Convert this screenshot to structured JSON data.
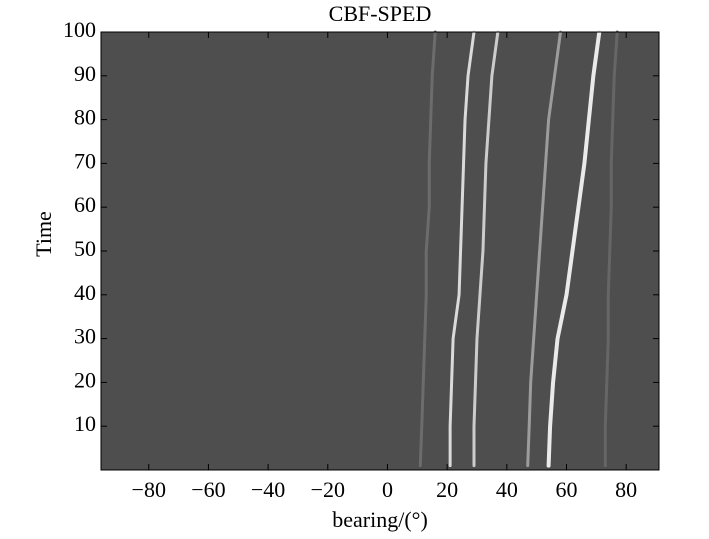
{
  "chart_data": {
    "type": "line",
    "title": "CBF-SPED",
    "x_label": "bearing/(°)",
    "y_label": "Time",
    "background": "#4e4e4e",
    "y": [
      1,
      10,
      20,
      30,
      40,
      50,
      60,
      70,
      80,
      90,
      100
    ],
    "series": [
      {
        "color": "#eaeaea",
        "values": [
          54,
          54.5,
          55.5,
          57,
          60,
          62,
          64,
          66,
          67.5,
          69,
          71
        ]
      },
      {
        "color": "#9c9c9c",
        "values": [
          47,
          47.5,
          48,
          49,
          50,
          51,
          52,
          53,
          54,
          56,
          58
        ]
      },
      {
        "color": "#cccccc",
        "values": [
          29,
          29,
          29.5,
          30,
          31,
          32,
          32.5,
          33,
          34,
          35,
          37
        ]
      },
      {
        "color": "#dadada",
        "values": [
          21,
          21,
          21.5,
          22,
          24,
          24.5,
          25,
          25.5,
          26,
          27,
          29
        ]
      },
      {
        "color": "#6c6c6c",
        "values": [
          11,
          11.5,
          12,
          12.5,
          13,
          13,
          14,
          14,
          14.5,
          15,
          16
        ]
      },
      {
        "color": "#666666",
        "values": [
          73,
          73,
          73.5,
          74,
          74,
          74.5,
          75,
          75,
          75.5,
          76,
          77
        ]
      }
    ],
    "xlim": [
      -96,
      91
    ],
    "ylim": [
      0,
      100
    ],
    "xticks": [
      {
        "value": -80,
        "label": "−80"
      },
      {
        "value": -60,
        "label": "−60"
      },
      {
        "value": -40,
        "label": "−40"
      },
      {
        "value": -20,
        "label": "−20"
      },
      0,
      20,
      40,
      60,
      80
    ],
    "yticks": [
      10,
      20,
      30,
      40,
      50,
      60,
      70,
      80,
      90,
      100
    ]
  }
}
